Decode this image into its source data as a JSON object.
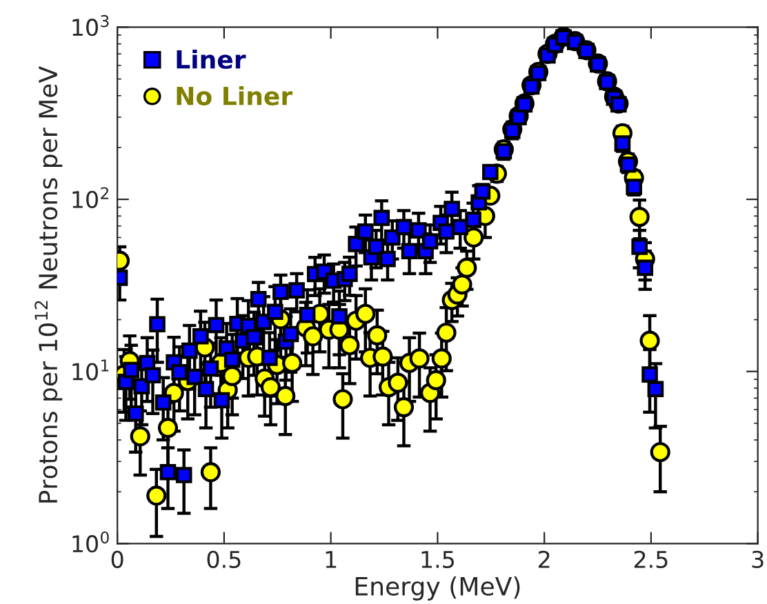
{
  "chart_data": {
    "type": "scatter",
    "xlabel": "Energy (MeV)",
    "ylabel": "Protons per 10$^{12}$ Neutrons per MeV",
    "log": "y",
    "xlim": [
      0,
      3
    ],
    "ylim": [
      1,
      1000
    ],
    "xticks": [
      0,
      0.5,
      1,
      1.5,
      2,
      2.5,
      3
    ],
    "yticks": [
      {
        "value": 1,
        "label": "10$^{0}$"
      },
      {
        "value": 10,
        "label": "10$^{1}$"
      },
      {
        "value": 100,
        "label": "10$^{2}$"
      },
      {
        "value": 1000,
        "label": "10$^{3}$"
      }
    ],
    "legend": "top left",
    "grid": false,
    "series": [
      {
        "name": "No Liner",
        "color": "#ffff00",
        "marker": "circle",
        "x": [
          0.011,
          0.032,
          0.058,
          0.107,
          0.183,
          0.237,
          0.265,
          0.33,
          0.41,
          0.437,
          0.485,
          0.517,
          0.538,
          0.614,
          0.655,
          0.69,
          0.718,
          0.748,
          0.765,
          0.787,
          0.819,
          0.883,
          0.916,
          0.948,
          0.991,
          1.04,
          1.056,
          1.088,
          1.118,
          1.162,
          1.184,
          1.217,
          1.243,
          1.271,
          1.314,
          1.342,
          1.368,
          1.415,
          1.465,
          1.493,
          1.519,
          1.541,
          1.567,
          1.593,
          1.615,
          1.637,
          1.669,
          1.723,
          1.747,
          1.778,
          1.81,
          1.85,
          1.88,
          1.907,
          1.94,
          1.972,
          2.015,
          2.05,
          2.09,
          2.144,
          2.197,
          2.251,
          2.294,
          2.327,
          2.348,
          2.366,
          2.392,
          2.42,
          2.446,
          2.472,
          2.494,
          2.543
        ],
        "values": [
          44,
          9.6,
          11.5,
          4.2,
          1.9,
          4.7,
          7.5,
          8.8,
          13.8,
          2.6,
          11.2,
          7.8,
          9.4,
          12,
          12.2,
          9.1,
          8.1,
          10.9,
          20.1,
          7.2,
          11.2,
          18,
          16,
          21.6,
          17.5,
          17.5,
          6.9,
          14.2,
          19.7,
          21.6,
          12,
          16.2,
          12.2,
          8.1,
          8.6,
          6.2,
          11.2,
          11.9,
          7.5,
          8.9,
          11.9,
          16.8,
          26,
          28,
          32,
          40,
          60,
          80,
          105,
          141,
          195,
          255,
          305,
          360,
          460,
          550,
          700,
          800,
          880,
          830,
          735,
          615,
          485,
          395,
          360,
          242,
          166,
          133,
          79,
          45,
          15.1,
          3.4
        ],
        "errors": [
          9,
          3.8,
          4.6,
          1.7,
          0.8,
          1.9,
          3,
          3.5,
          5.5,
          1,
          4.5,
          3.1,
          3.8,
          4.8,
          4.9,
          3.6,
          3.2,
          4.4,
          8,
          2.9,
          4.5,
          7.2,
          6.4,
          8.6,
          7,
          7,
          2.8,
          5.7,
          7.9,
          8.6,
          4.8,
          6.5,
          4.9,
          3.2,
          3.4,
          2.5,
          4.5,
          4.8,
          3,
          3.6,
          4.8,
          6.7,
          6.5,
          7,
          8,
          10,
          15,
          20,
          null,
          14,
          20,
          26,
          null,
          null,
          null,
          null,
          null,
          null,
          null,
          null,
          null,
          null,
          null,
          null,
          null,
          24,
          17,
          13,
          20,
          11,
          6,
          1.4
        ]
      },
      {
        "name": "Liner",
        "color": "#0000ff",
        "marker": "square",
        "x": [
          0.011,
          0.04,
          0.065,
          0.086,
          0.114,
          0.14,
          0.166,
          0.187,
          0.215,
          0.237,
          0.265,
          0.291,
          0.312,
          0.338,
          0.362,
          0.39,
          0.415,
          0.437,
          0.463,
          0.489,
          0.512,
          0.538,
          0.562,
          0.588,
          0.614,
          0.64,
          0.661,
          0.685,
          0.713,
          0.739,
          0.765,
          0.79,
          0.812,
          0.84,
          0.89,
          0.926,
          0.969,
          1.013,
          1.04,
          1.065,
          1.088,
          1.118,
          1.162,
          1.19,
          1.212,
          1.238,
          1.266,
          1.288,
          1.342,
          1.368,
          1.411,
          1.444,
          1.465,
          1.515,
          1.541,
          1.567,
          1.606,
          1.667,
          1.693,
          1.71,
          1.747,
          1.81,
          1.85,
          1.88,
          1.907,
          1.94,
          1.972,
          2.015,
          2.05,
          2.09,
          2.144,
          2.197,
          2.251,
          2.294,
          2.327,
          2.348,
          2.366,
          2.392,
          2.42,
          2.446,
          2.472,
          2.494,
          2.521
        ],
        "values": [
          35,
          8.7,
          10.2,
          5.7,
          8.2,
          11.2,
          9.5,
          18.8,
          6.6,
          2.6,
          11.3,
          9.9,
          2.5,
          13.2,
          9.3,
          16,
          7.9,
          10.4,
          18.6,
          6.8,
          13.6,
          11.7,
          18.9,
          15.1,
          18.4,
          15.8,
          26.3,
          19.4,
          12,
          22.2,
          29,
          14.9,
          16.5,
          29.6,
          21.3,
          36.8,
          38,
          33.7,
          20.9,
          34.4,
          36.9,
          55,
          65,
          46,
          53,
          78,
          45,
          60,
          69,
          50,
          66,
          50,
          57,
          73,
          65,
          88,
          69,
          76,
          96,
          111,
          144,
          190,
          250,
          300,
          356,
          452,
          541,
          685,
          790,
          871,
          820,
          728,
          608,
          480,
          389,
          356,
          211,
          159,
          118,
          53,
          40,
          9.6,
          7.9
        ],
        "errors": [
          9,
          3.5,
          4,
          2.3,
          3.3,
          4.5,
          3.8,
          7.5,
          2.6,
          1,
          4.5,
          4,
          1,
          5.3,
          3.7,
          6.4,
          3.2,
          4.2,
          7.4,
          2.7,
          5.4,
          4.7,
          7.6,
          6,
          7.4,
          6.3,
          6.6,
          7.8,
          4.8,
          8.9,
          7.3,
          6,
          6.6,
          7.4,
          8.5,
          9.2,
          9.5,
          8.4,
          8.4,
          8.6,
          9.2,
          14,
          16,
          12,
          13,
          20,
          11,
          15,
          17,
          13,
          17,
          13,
          14,
          18,
          16,
          22,
          17,
          19,
          24,
          11,
          null,
          19,
          25,
          null,
          null,
          null,
          null,
          null,
          null,
          null,
          null,
          null,
          null,
          null,
          null,
          null,
          21,
          16,
          12,
          13,
          10,
          3.8,
          3.2
        ]
      }
    ]
  }
}
